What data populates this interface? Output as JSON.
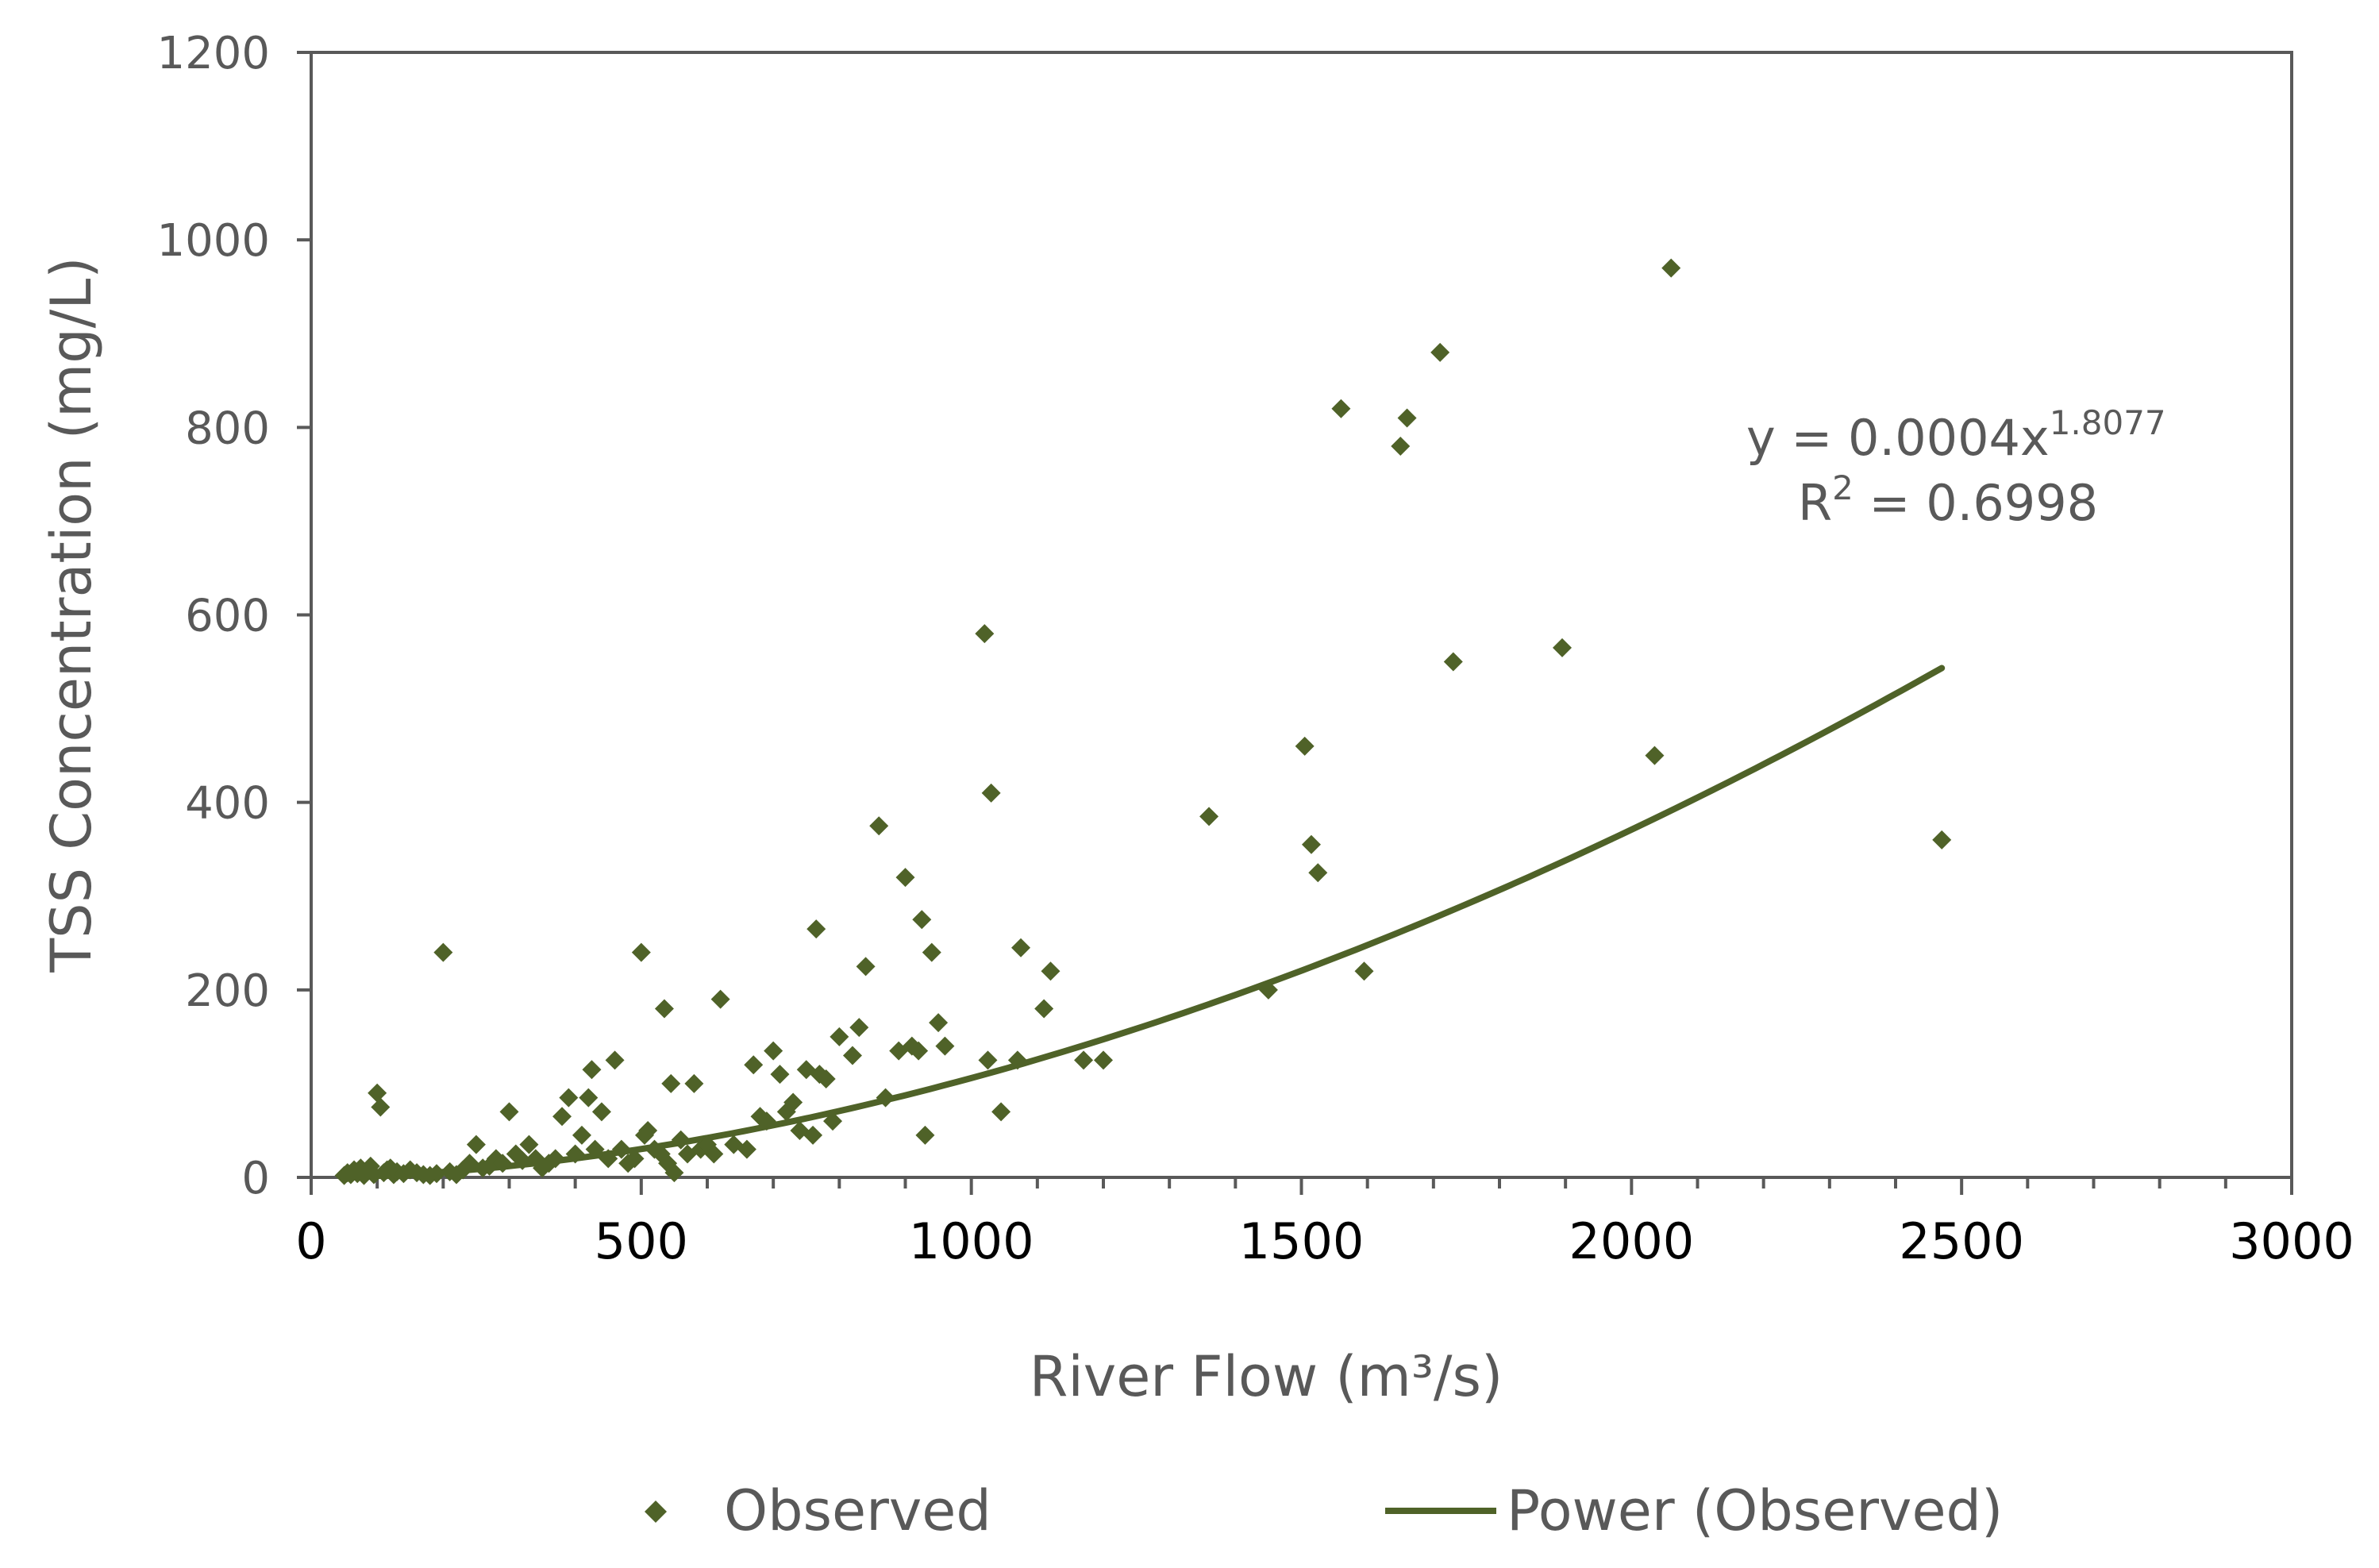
{
  "chart_data": {
    "type": "scatter",
    "title": "",
    "xlabel": "River Flow (m³/s)",
    "ylabel": "TSS Concentration (mg/L)",
    "xlim": [
      0,
      3000
    ],
    "ylim": [
      0,
      1200
    ],
    "xticks": [
      "0",
      "500",
      "1000",
      "1500",
      "2000",
      "2500",
      "3000"
    ],
    "yticks": [
      "0",
      "200",
      "400",
      "600",
      "800",
      "1000",
      "1200"
    ],
    "grid": false,
    "legend_position": "bottom",
    "series": [
      {
        "name": "Observed",
        "kind": "scatter",
        "marker": "diamond",
        "color": "#4f6228",
        "points": [
          [
            50,
            2
          ],
          [
            55,
            5
          ],
          [
            60,
            3
          ],
          [
            65,
            8
          ],
          [
            70,
            4
          ],
          [
            75,
            10
          ],
          [
            80,
            2
          ],
          [
            85,
            6
          ],
          [
            90,
            12
          ],
          [
            95,
            3
          ],
          [
            100,
            90
          ],
          [
            105,
            75
          ],
          [
            110,
            5
          ],
          [
            115,
            8
          ],
          [
            120,
            10
          ],
          [
            125,
            3
          ],
          [
            130,
            6
          ],
          [
            140,
            4
          ],
          [
            150,
            8
          ],
          [
            160,
            5
          ],
          [
            170,
            3
          ],
          [
            180,
            2
          ],
          [
            190,
            4
          ],
          [
            200,
            240
          ],
          [
            210,
            6
          ],
          [
            220,
            3
          ],
          [
            230,
            8
          ],
          [
            240,
            15
          ],
          [
            250,
            35
          ],
          [
            260,
            10
          ],
          [
            270,
            12
          ],
          [
            280,
            20
          ],
          [
            290,
            15
          ],
          [
            300,
            70
          ],
          [
            310,
            25
          ],
          [
            320,
            18
          ],
          [
            330,
            35
          ],
          [
            340,
            20
          ],
          [
            350,
            10
          ],
          [
            360,
            15
          ],
          [
            370,
            20
          ],
          [
            380,
            65
          ],
          [
            390,
            85
          ],
          [
            400,
            25
          ],
          [
            410,
            45
          ],
          [
            420,
            85
          ],
          [
            425,
            115
          ],
          [
            430,
            30
          ],
          [
            440,
            70
          ],
          [
            450,
            20
          ],
          [
            460,
            125
          ],
          [
            470,
            30
          ],
          [
            480,
            15
          ],
          [
            490,
            20
          ],
          [
            500,
            240
          ],
          [
            505,
            45
          ],
          [
            510,
            50
          ],
          [
            520,
            30
          ],
          [
            530,
            25
          ],
          [
            535,
            180
          ],
          [
            540,
            15
          ],
          [
            545,
            100
          ],
          [
            550,
            5
          ],
          [
            560,
            40
          ],
          [
            570,
            25
          ],
          [
            580,
            100
          ],
          [
            590,
            30
          ],
          [
            600,
            35
          ],
          [
            610,
            25
          ],
          [
            620,
            190
          ],
          [
            640,
            35
          ],
          [
            660,
            30
          ],
          [
            670,
            120
          ],
          [
            680,
            65
          ],
          [
            690,
            60
          ],
          [
            700,
            135
          ],
          [
            710,
            110
          ],
          [
            720,
            70
          ],
          [
            730,
            80
          ],
          [
            740,
            50
          ],
          [
            750,
            115
          ],
          [
            760,
            45
          ],
          [
            765,
            265
          ],
          [
            770,
            110
          ],
          [
            780,
            105
          ],
          [
            790,
            60
          ],
          [
            800,
            150
          ],
          [
            820,
            130
          ],
          [
            830,
            160
          ],
          [
            840,
            225
          ],
          [
            860,
            375
          ],
          [
            870,
            85
          ],
          [
            890,
            135
          ],
          [
            900,
            320
          ],
          [
            910,
            140
          ],
          [
            920,
            135
          ],
          [
            925,
            275
          ],
          [
            930,
            45
          ],
          [
            940,
            240
          ],
          [
            950,
            165
          ],
          [
            960,
            140
          ],
          [
            1020,
            580
          ],
          [
            1025,
            125
          ],
          [
            1030,
            410
          ],
          [
            1045,
            70
          ],
          [
            1070,
            125
          ],
          [
            1075,
            245
          ],
          [
            1110,
            180
          ],
          [
            1120,
            220
          ],
          [
            1170,
            125
          ],
          [
            1200,
            125
          ],
          [
            1360,
            385
          ],
          [
            1450,
            200
          ],
          [
            1505,
            460
          ],
          [
            1515,
            355
          ],
          [
            1525,
            325
          ],
          [
            1560,
            820
          ],
          [
            1595,
            220
          ],
          [
            1650,
            780
          ],
          [
            1660,
            810
          ],
          [
            1710,
            880
          ],
          [
            1730,
            550
          ],
          [
            1895,
            565
          ],
          [
            2035,
            450
          ],
          [
            2060,
            970
          ],
          [
            2470,
            360
          ]
        ]
      },
      {
        "name": "Power (Observed)",
        "kind": "trendline",
        "color": "#4f6228",
        "equation": {
          "coef": 0.0004,
          "exponent": 1.8077
        },
        "x_range": [
          50,
          2470
        ]
      }
    ],
    "annotations": {
      "equation_prefix": "y = 0.0004x",
      "equation_exponent": "1.8077",
      "r2_prefix": "R",
      "r2_exponent": "2",
      "r2_suffix": " = 0.6998"
    }
  }
}
